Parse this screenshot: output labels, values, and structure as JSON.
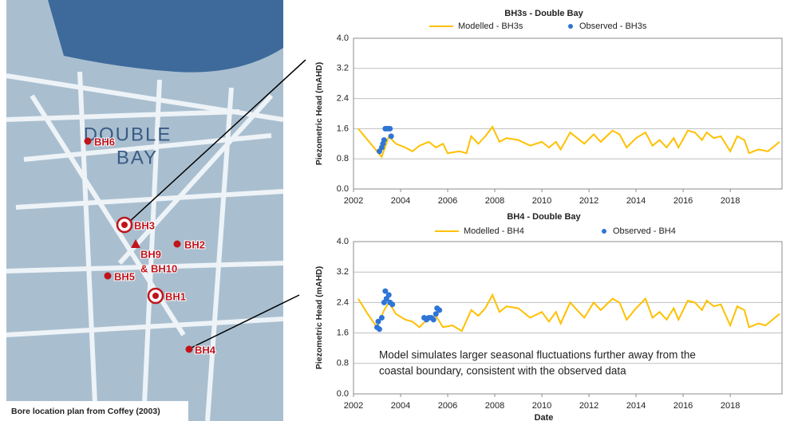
{
  "map": {
    "place": [
      "DOUBLE",
      "BAY"
    ],
    "bores": [
      "BH6",
      "BH3",
      "BH2",
      "BH9",
      "& BH10",
      "BH5",
      "BH1",
      "BH4"
    ],
    "caption": "Bore location plan from Coffey (2003)"
  },
  "chart_data": [
    {
      "type": "line",
      "title": "BH3s - Double Bay",
      "ylabel": "Piezometric Head (mAHD)",
      "xlim": [
        2002,
        2020.2
      ],
      "xticks": [
        2002,
        2004,
        2006,
        2008,
        2010,
        2012,
        2014,
        2016,
        2018
      ],
      "ylim": [
        0,
        4
      ],
      "yticks": [
        {
          "value": 0,
          "label": "0.0"
        },
        0.8,
        1.6,
        2.4,
        3.2,
        {
          "value": 4,
          "label": "4.0"
        }
      ],
      "grid": true,
      "series": [
        {
          "name": "Modelled - BH3s",
          "color": "#ffc000",
          "style": "line",
          "x": [
            2002.2,
            2002.6,
            2003,
            2003.2,
            2003.5,
            2003.8,
            2004.2,
            2004.5,
            2004.8,
            2005.2,
            2005.5,
            2005.8,
            2006,
            2006.5,
            2006.8,
            2007,
            2007.3,
            2007.6,
            2007.9,
            2008.2,
            2008.5,
            2009,
            2009.5,
            2010,
            2010.3,
            2010.6,
            2010.8,
            2011.2,
            2011.5,
            2011.8,
            2012.2,
            2012.5,
            2013,
            2013.3,
            2013.6,
            2014,
            2014.4,
            2014.7,
            2015,
            2015.3,
            2015.6,
            2015.8,
            2016.2,
            2016.5,
            2016.8,
            2017,
            2017.3,
            2017.6,
            2018,
            2018.3,
            2018.6,
            2018.8,
            2019.2,
            2019.6,
            2019.8,
            2020.1
          ],
          "values": [
            1.6,
            1.3,
            1.0,
            0.85,
            1.4,
            1.2,
            1.1,
            1.0,
            1.15,
            1.25,
            1.1,
            1.2,
            0.95,
            1.0,
            0.95,
            1.4,
            1.2,
            1.4,
            1.65,
            1.25,
            1.35,
            1.3,
            1.15,
            1.25,
            1.1,
            1.25,
            1.05,
            1.5,
            1.35,
            1.2,
            1.45,
            1.25,
            1.55,
            1.45,
            1.1,
            1.35,
            1.5,
            1.15,
            1.3,
            1.1,
            1.35,
            1.1,
            1.55,
            1.5,
            1.3,
            1.5,
            1.35,
            1.4,
            1.0,
            1.4,
            1.3,
            0.95,
            1.05,
            1.0,
            1.1,
            1.25
          ]
        },
        {
          "name": "Observed - BH3s",
          "color": "#2e75d6",
          "style": "scatter",
          "x": [
            2003.1,
            2003.2,
            2003.25,
            2003.3,
            2003.35,
            2003.45,
            2003.55,
            2003.6
          ],
          "values": [
            1.0,
            1.1,
            1.2,
            1.3,
            1.6,
            1.6,
            1.6,
            1.4
          ]
        }
      ]
    },
    {
      "type": "line",
      "title": "BH4 - Double Bay",
      "ylabel": "Piezometric Head (mAHD)",
      "xlabel": "Date",
      "annotation": [
        "Model simulates larger seasonal fluctuations further away from the",
        "coastal boundary, consistent with the observed data"
      ],
      "xlim": [
        2002,
        2020.2
      ],
      "xticks": [
        2002,
        2004,
        2006,
        2008,
        2010,
        2012,
        2014,
        2016,
        2018
      ],
      "ylim": [
        0,
        4
      ],
      "yticks": [
        {
          "value": 0,
          "label": "0.0"
        },
        0.8,
        1.6,
        2.4,
        3.2,
        {
          "value": 4,
          "label": "4.0"
        }
      ],
      "grid": true,
      "series": [
        {
          "name": "Modelled - BH4",
          "color": "#ffc000",
          "style": "line",
          "x": [
            2002.2,
            2002.6,
            2003,
            2003.3,
            2003.5,
            2003.8,
            2004.2,
            2004.5,
            2004.8,
            2005.2,
            2005.5,
            2005.8,
            2006.2,
            2006.6,
            2007,
            2007.3,
            2007.6,
            2007.9,
            2008.2,
            2008.5,
            2009,
            2009.5,
            2010,
            2010.3,
            2010.6,
            2010.8,
            2011.2,
            2011.5,
            2011.8,
            2012.2,
            2012.5,
            2013,
            2013.3,
            2013.6,
            2014,
            2014.4,
            2014.7,
            2015,
            2015.3,
            2015.6,
            2015.8,
            2016.2,
            2016.5,
            2016.8,
            2017,
            2017.3,
            2017.6,
            2018,
            2018.3,
            2018.6,
            2018.8,
            2019.2,
            2019.5,
            2019.8,
            2020.1
          ],
          "values": [
            2.5,
            2.1,
            1.75,
            2.2,
            2.4,
            2.1,
            1.95,
            1.9,
            1.75,
            2.0,
            2.05,
            1.75,
            1.8,
            1.65,
            2.2,
            2.05,
            2.25,
            2.6,
            2.15,
            2.3,
            2.25,
            2.0,
            2.15,
            1.9,
            2.15,
            1.85,
            2.4,
            2.2,
            2.0,
            2.4,
            2.2,
            2.5,
            2.4,
            1.95,
            2.25,
            2.5,
            2.0,
            2.15,
            1.95,
            2.25,
            1.95,
            2.45,
            2.4,
            2.2,
            2.45,
            2.3,
            2.35,
            1.8,
            2.3,
            2.2,
            1.75,
            1.85,
            1.8,
            1.95,
            2.1
          ]
        },
        {
          "name": "Observed - BH4",
          "color": "#2e75d6",
          "style": "scatter",
          "x": [
            2003.0,
            2003.05,
            2003.1,
            2003.2,
            2003.3,
            2003.35,
            2003.4,
            2003.5,
            2003.55,
            2003.65,
            2005.0,
            2005.1,
            2005.2,
            2005.3,
            2005.4,
            2005.5,
            2005.55,
            2005.65
          ],
          "values": [
            1.75,
            1.9,
            1.7,
            2.0,
            2.4,
            2.7,
            2.5,
            2.6,
            2.4,
            2.35,
            2.0,
            1.95,
            2.0,
            2.0,
            1.95,
            2.1,
            2.25,
            2.2
          ]
        }
      ]
    }
  ]
}
